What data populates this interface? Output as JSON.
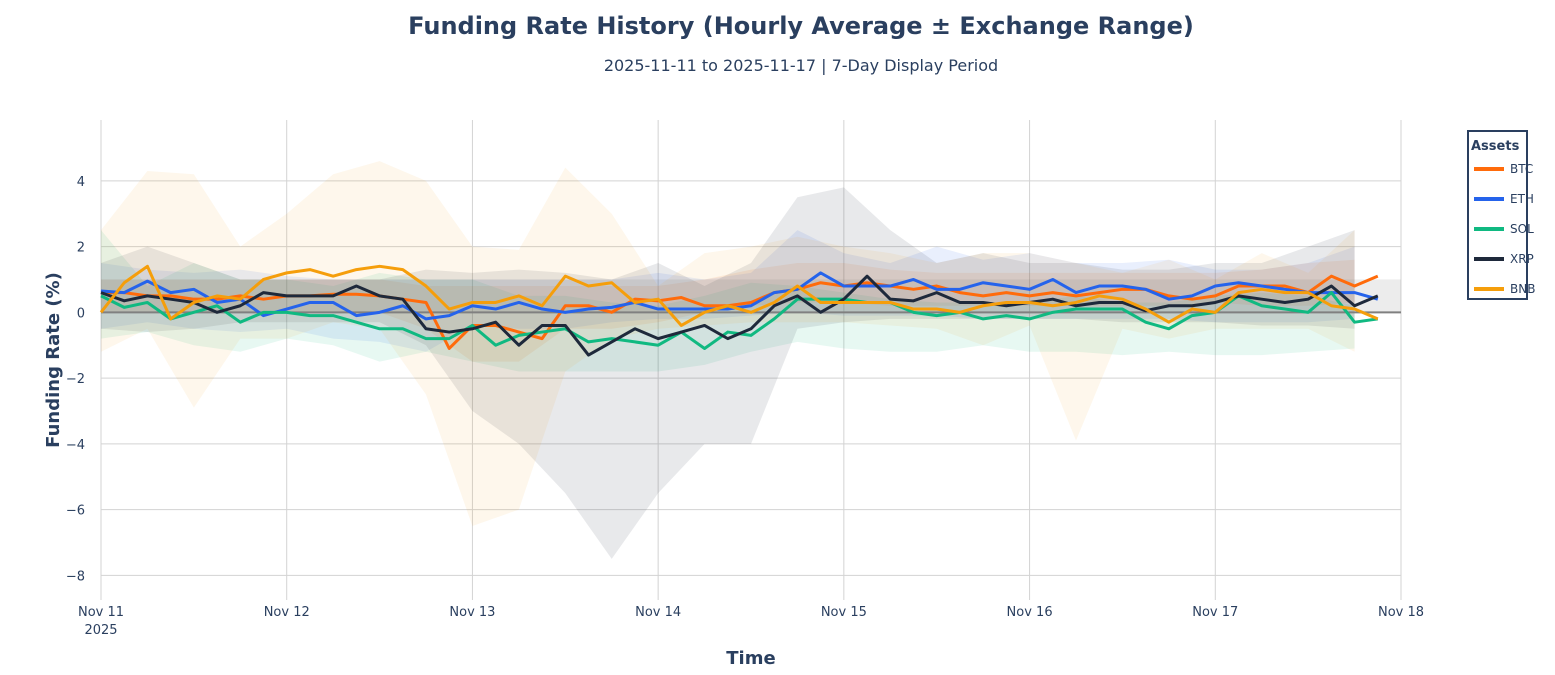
{
  "chart_data": {
    "type": "line",
    "title": "Funding Rate History (Hourly Average ± Exchange Range)",
    "subtitle": "2025-11-11 to 2025-11-17 | 7-Day Display Period",
    "xlabel": "Time",
    "ylabel": "Funding Rate (%)",
    "xlim": [
      "2025-11-11T00:00",
      "2025-11-18T00:00"
    ],
    "ylim": [
      -8.75,
      5.85
    ],
    "x_ticks": [
      {
        "label": "Nov 11",
        "sub": "2025",
        "date": "2025-11-11T00:00"
      },
      {
        "label": "Nov 12",
        "date": "2025-11-12T00:00"
      },
      {
        "label": "Nov 13",
        "date": "2025-11-13T00:00"
      },
      {
        "label": "Nov 14",
        "date": "2025-11-14T00:00"
      },
      {
        "label": "Nov 15",
        "date": "2025-11-15T00:00"
      },
      {
        "label": "Nov 16",
        "date": "2025-11-16T00:00"
      },
      {
        "label": "Nov 17",
        "date": "2025-11-17T00:00"
      },
      {
        "label": "Nov 18",
        "date": "2025-11-18T00:00"
      }
    ],
    "y_ticks": [
      -8,
      -6,
      -4,
      -2,
      0,
      2,
      4
    ],
    "y_tick_labels": [
      "−8",
      "−6",
      "−4",
      "−2",
      "0",
      "2",
      "4"
    ],
    "grid": true,
    "reference_band": [
      0,
      1
    ],
    "zero_line": true,
    "legend": {
      "title": "Assets",
      "placement": "right"
    },
    "x": [
      "2025-11-11T00:00",
      "2025-11-11T03:00",
      "2025-11-11T06:00",
      "2025-11-11T09:00",
      "2025-11-11T12:00",
      "2025-11-11T15:00",
      "2025-11-11T18:00",
      "2025-11-11T21:00",
      "2025-11-12T00:00",
      "2025-11-12T03:00",
      "2025-11-12T06:00",
      "2025-11-12T09:00",
      "2025-11-12T12:00",
      "2025-11-12T15:00",
      "2025-11-12T18:00",
      "2025-11-12T21:00",
      "2025-11-13T00:00",
      "2025-11-13T03:00",
      "2025-11-13T06:00",
      "2025-11-13T09:00",
      "2025-11-13T12:00",
      "2025-11-13T15:00",
      "2025-11-13T18:00",
      "2025-11-13T21:00",
      "2025-11-14T00:00",
      "2025-11-14T03:00",
      "2025-11-14T06:00",
      "2025-11-14T09:00",
      "2025-11-14T12:00",
      "2025-11-14T15:00",
      "2025-11-14T18:00",
      "2025-11-14T21:00",
      "2025-11-15T00:00",
      "2025-11-15T03:00",
      "2025-11-15T06:00",
      "2025-11-15T09:00",
      "2025-11-15T12:00",
      "2025-11-15T15:00",
      "2025-11-15T18:00",
      "2025-11-15T21:00",
      "2025-11-16T00:00",
      "2025-11-16T03:00",
      "2025-11-16T06:00",
      "2025-11-16T09:00",
      "2025-11-16T12:00",
      "2025-11-16T15:00",
      "2025-11-16T18:00",
      "2025-11-16T21:00",
      "2025-11-17T00:00",
      "2025-11-17T03:00",
      "2025-11-17T06:00",
      "2025-11-17T09:00",
      "2025-11-17T12:00",
      "2025-11-17T15:00",
      "2025-11-17T18:00",
      "2025-11-17T21:00"
    ],
    "band_x": [
      "2025-11-11T00:00",
      "2025-11-11T06:00",
      "2025-11-11T12:00",
      "2025-11-11T18:00",
      "2025-11-12T00:00",
      "2025-11-12T06:00",
      "2025-11-12T12:00",
      "2025-11-12T18:00",
      "2025-11-13T00:00",
      "2025-11-13T06:00",
      "2025-11-13T12:00",
      "2025-11-13T18:00",
      "2025-11-14T00:00",
      "2025-11-14T06:00",
      "2025-11-14T12:00",
      "2025-11-14T18:00",
      "2025-11-15T00:00",
      "2025-11-15T06:00",
      "2025-11-15T12:00",
      "2025-11-15T18:00",
      "2025-11-16T00:00",
      "2025-11-16T06:00",
      "2025-11-16T12:00",
      "2025-11-16T18:00",
      "2025-11-17T00:00",
      "2025-11-17T06:00",
      "2025-11-17T12:00",
      "2025-11-17T18:00"
    ],
    "series": [
      {
        "name": "BTC",
        "color": "#ff6b0b",
        "values": [
          0.6,
          0.6,
          0.5,
          0.5,
          0.4,
          0.4,
          0.5,
          0.4,
          0.5,
          0.5,
          0.55,
          0.55,
          0.5,
          0.4,
          0.3,
          -1.1,
          -0.4,
          -0.4,
          -0.6,
          -0.8,
          0.2,
          0.2,
          0.0,
          0.4,
          0.35,
          0.45,
          0.2,
          0.2,
          0.3,
          0.6,
          0.7,
          0.9,
          0.8,
          0.9,
          0.8,
          0.7,
          0.8,
          0.6,
          0.5,
          0.6,
          0.5,
          0.6,
          0.5,
          0.6,
          0.7,
          0.7,
          0.5,
          0.4,
          0.5,
          0.8,
          0.8,
          0.8,
          0.6,
          1.1,
          0.8,
          1.1
        ],
        "band_high": [
          1.0,
          1.0,
          1.0,
          1.0,
          1.0,
          1.0,
          1.0,
          0.8,
          0.8,
          0.8,
          0.8,
          0.8,
          0.8,
          1.0,
          1.3,
          1.5,
          1.5,
          1.3,
          1.2,
          1.2,
          1.2,
          1.2,
          1.2,
          1.2,
          1.2,
          1.3,
          1.5,
          1.6
        ],
        "band_low": [
          0.0,
          0.0,
          0.0,
          0.0,
          0.0,
          0.0,
          0.0,
          -0.5,
          -1.5,
          -1.5,
          -0.5,
          -0.5,
          -0.3,
          0.0,
          0.2,
          0.3,
          0.3,
          0.2,
          0.2,
          0.2,
          0.2,
          0.2,
          0.2,
          0.2,
          0.3,
          0.2,
          0.2,
          0.3
        ]
      },
      {
        "name": "ETH",
        "color": "#2563eb",
        "values": [
          0.65,
          0.6,
          0.95,
          0.6,
          0.7,
          0.3,
          0.4,
          -0.1,
          0.1,
          0.3,
          0.3,
          -0.1,
          0.0,
          0.2,
          -0.2,
          -0.1,
          0.2,
          0.1,
          0.3,
          0.1,
          0.0,
          0.1,
          0.15,
          0.3,
          0.1,
          0.1,
          0.1,
          0.1,
          0.2,
          0.6,
          0.7,
          1.2,
          0.8,
          0.8,
          0.8,
          1.0,
          0.7,
          0.7,
          0.9,
          0.8,
          0.7,
          1.0,
          0.6,
          0.8,
          0.8,
          0.7,
          0.4,
          0.5,
          0.8,
          0.9,
          0.8,
          0.7,
          0.6,
          0.6,
          0.6,
          0.4
        ],
        "band_high": [
          1.5,
          1.3,
          1.2,
          1.3,
          1.1,
          1.0,
          1.0,
          1.0,
          1.0,
          1.0,
          1.0,
          1.0,
          1.2,
          1.0,
          1.2,
          2.5,
          1.8,
          1.5,
          2.0,
          1.6,
          1.8,
          1.5,
          1.5,
          1.6,
          1.3,
          1.3,
          1.5,
          2.0
        ],
        "band_low": [
          -0.5,
          -0.3,
          -0.5,
          -0.6,
          -0.5,
          -0.8,
          -0.9,
          -1.2,
          -0.4,
          -0.5,
          -0.5,
          -0.3,
          -0.2,
          -0.2,
          -0.1,
          0.0,
          -0.1,
          -0.1,
          -0.1,
          -0.2,
          -0.2,
          -0.2,
          -0.2,
          -0.2,
          -0.3,
          -0.3,
          -0.3,
          -0.2
        ]
      },
      {
        "name": "SOL",
        "color": "#10b981",
        "values": [
          0.5,
          0.15,
          0.3,
          -0.2,
          0.0,
          0.2,
          -0.3,
          0.0,
          0.0,
          -0.1,
          -0.1,
          -0.3,
          -0.5,
          -0.5,
          -0.8,
          -0.8,
          -0.4,
          -1.0,
          -0.7,
          -0.6,
          -0.5,
          -0.9,
          -0.8,
          -0.9,
          -1.0,
          -0.6,
          -1.1,
          -0.6,
          -0.7,
          -0.2,
          0.4,
          0.4,
          0.4,
          0.3,
          0.3,
          0.0,
          -0.1,
          0.0,
          -0.2,
          -0.1,
          -0.2,
          0.0,
          0.1,
          0.1,
          0.1,
          -0.3,
          -0.5,
          -0.1,
          0.0,
          0.5,
          0.2,
          0.1,
          0.0,
          0.6,
          -0.3,
          -0.2
        ],
        "band_high": [
          2.5,
          0.8,
          1.5,
          1.0,
          1.0,
          0.8,
          1.2,
          1.0,
          1.0,
          0.5,
          0.5,
          0.3,
          0.2,
          0.5,
          0.9,
          0.8,
          0.6,
          0.4,
          0.3,
          0.3,
          0.3,
          0.5,
          0.3,
          0.3,
          0.5,
          0.6,
          0.5,
          0.2
        ],
        "band_low": [
          -0.8,
          -0.6,
          -1.0,
          -1.2,
          -0.8,
          -1.0,
          -1.5,
          -1.2,
          -1.5,
          -1.8,
          -1.8,
          -1.8,
          -1.8,
          -1.6,
          -1.2,
          -0.9,
          -1.1,
          -1.2,
          -1.2,
          -1.0,
          -1.2,
          -1.2,
          -1.3,
          -1.2,
          -1.3,
          -1.3,
          -1.2,
          -1.1
        ]
      },
      {
        "name": "XRP",
        "color": "#1e293b",
        "values": [
          0.6,
          0.35,
          0.5,
          0.4,
          0.3,
          0.0,
          0.2,
          0.6,
          0.5,
          0.5,
          0.5,
          0.8,
          0.5,
          0.4,
          -0.5,
          -0.6,
          -0.5,
          -0.3,
          -1.0,
          -0.4,
          -0.4,
          -1.3,
          -0.9,
          -0.5,
          -0.8,
          -0.6,
          -0.4,
          -0.8,
          -0.5,
          0.2,
          0.5,
          0.0,
          0.4,
          1.1,
          0.4,
          0.35,
          0.6,
          0.3,
          0.3,
          0.2,
          0.3,
          0.4,
          0.2,
          0.3,
          0.3,
          0.05,
          0.2,
          0.2,
          0.3,
          0.5,
          0.4,
          0.3,
          0.4,
          0.8,
          0.2,
          0.5
        ],
        "band_high": [
          1.5,
          2.0,
          1.5,
          1.0,
          1.0,
          1.0,
          1.0,
          1.3,
          1.2,
          1.3,
          1.2,
          1.0,
          1.5,
          0.8,
          1.5,
          3.5,
          3.8,
          2.5,
          1.5,
          1.8,
          1.5,
          1.5,
          1.3,
          1.3,
          1.5,
          1.5,
          2.0,
          2.5
        ],
        "band_low": [
          -0.5,
          -0.6,
          -0.5,
          -0.3,
          -0.3,
          -0.3,
          -0.3,
          -1.0,
          -3.0,
          -4.0,
          -5.5,
          -7.5,
          -5.5,
          -4.0,
          -4.0,
          -0.5,
          -0.3,
          -0.2,
          -0.2,
          -0.2,
          -0.2,
          -0.2,
          -0.3,
          -0.3,
          -0.3,
          -0.4,
          -0.4,
          -0.5
        ]
      },
      {
        "name": "BNB",
        "color": "#f59e0b",
        "values": [
          0.0,
          0.9,
          1.4,
          -0.2,
          0.3,
          0.5,
          0.4,
          1.0,
          1.2,
          1.3,
          1.1,
          1.3,
          1.4,
          1.3,
          0.8,
          0.1,
          0.3,
          0.3,
          0.5,
          0.2,
          1.1,
          0.8,
          0.9,
          0.3,
          0.4,
          -0.4,
          0.0,
          0.2,
          0.0,
          0.3,
          0.8,
          0.3,
          0.3,
          0.3,
          0.3,
          0.1,
          0.1,
          0.0,
          0.2,
          0.3,
          0.3,
          0.2,
          0.3,
          0.5,
          0.4,
          0.1,
          -0.3,
          0.1,
          0.0,
          0.6,
          0.7,
          0.6,
          0.6,
          0.2,
          0.1,
          -0.2
        ],
        "band_high": [
          2.5,
          4.3,
          4.2,
          2.0,
          3.0,
          4.2,
          4.6,
          4.0,
          2.0,
          1.9,
          4.4,
          3.0,
          0.8,
          1.8,
          2.0,
          2.3,
          2.0,
          1.8,
          1.5,
          1.8,
          1.8,
          1.5,
          1.2,
          1.6,
          1.0,
          1.8,
          1.2,
          2.5
        ],
        "band_low": [
          -1.2,
          -0.5,
          -2.9,
          -0.8,
          -0.8,
          -0.3,
          -0.5,
          -2.5,
          -6.5,
          -6.0,
          -1.8,
          -0.8,
          -0.5,
          -0.4,
          -0.3,
          -0.3,
          -0.3,
          -0.4,
          -0.5,
          -1.0,
          -0.4,
          -3.9,
          -0.5,
          -0.8,
          -0.5,
          -0.5,
          -0.5,
          -1.2
        ]
      }
    ]
  }
}
